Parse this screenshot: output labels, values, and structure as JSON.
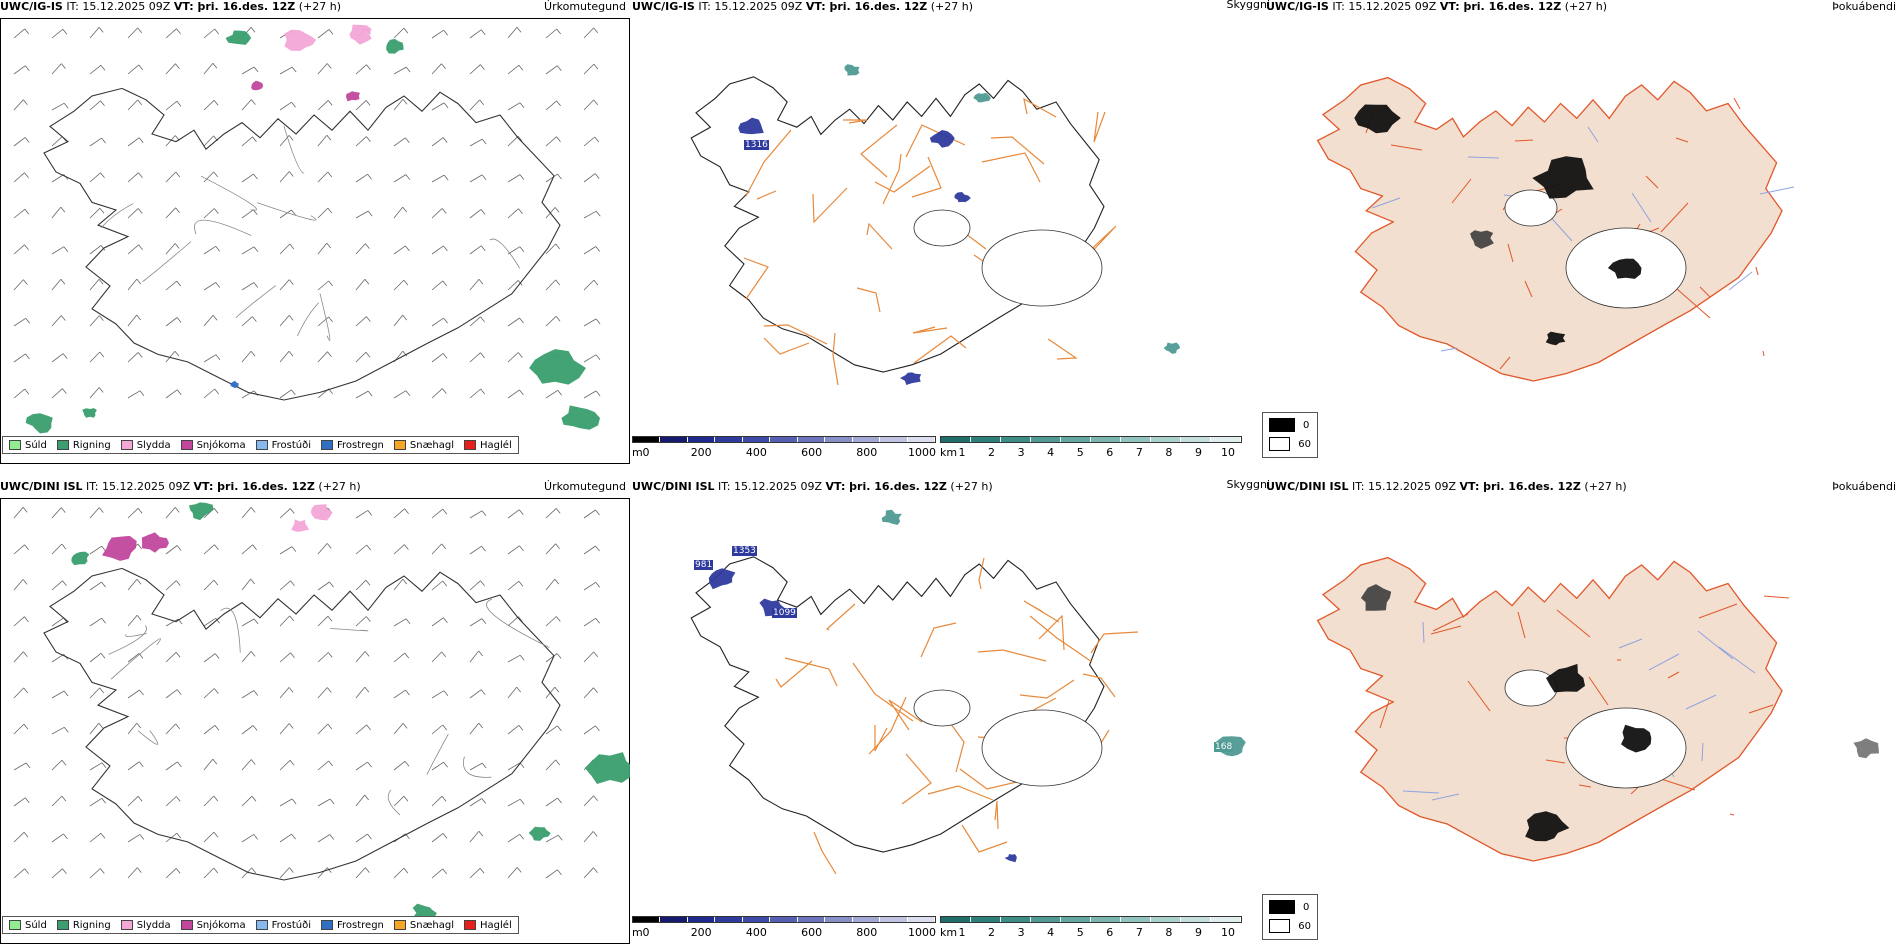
{
  "rows": [
    {
      "model": "UWC/IG-IS",
      "it_label": "IT:",
      "it_value": "15.12.2025 09Z",
      "vt_label": "VT: þri. 16.des. 12Z",
      "lead": "(+27 h)",
      "panel1_type": "Úrkomutegund",
      "panel2_type": "Skyggni",
      "panel3_type": "Þokuábendi"
    },
    {
      "model": "UWC/DINI ISL",
      "it_label": "IT:",
      "it_value": "15.12.2025 09Z",
      "vt_label": "VT: þri. 16.des. 12Z",
      "lead": "(+27 h)",
      "panel1_type": "Úrkomutegund",
      "panel2_type": "Skyggni",
      "panel3_type": "Þokuábendi"
    }
  ],
  "precip_legend": [
    {
      "label": "Súld",
      "color": "#90ee90"
    },
    {
      "label": "Rigning",
      "color": "#3a9e6e"
    },
    {
      "label": "Slydda",
      "color": "#f4a6d7"
    },
    {
      "label": "Snjókoma",
      "color": "#c0479b"
    },
    {
      "label": "Frostúði",
      "color": "#87b9f0"
    },
    {
      "label": "Frostregn",
      "color": "#2f6fc4"
    },
    {
      "label": "Snæhagl",
      "color": "#f5a623"
    },
    {
      "label": "Haglél",
      "color": "#e8201c"
    }
  ],
  "elev_bar": {
    "unit": "m",
    "ticks": [
      "0",
      "200",
      "400",
      "600",
      "800",
      "1000"
    ],
    "colors": [
      "#000000",
      "#151a6e",
      "#1f2a8f",
      "#2e3a9e",
      "#3e4aa8",
      "#5560b2",
      "#6c74bd",
      "#8890c8",
      "#a3a8d4",
      "#c0c3e1",
      "#dcdeef"
    ]
  },
  "vis_bar": {
    "unit": "km",
    "ticks": [
      "1",
      "2",
      "3",
      "4",
      "5",
      "6",
      "7",
      "8",
      "9",
      "10"
    ],
    "colors": [
      "#1e6f6a",
      "#2d7f79",
      "#3d8d87",
      "#4f9a94",
      "#64a8a2",
      "#7ab5af",
      "#92c3be",
      "#abd1cc",
      "#c5e0dc",
      "#e0efed"
    ]
  },
  "fog_legend": [
    {
      "label": "0",
      "color": "#000000"
    },
    {
      "label": "60",
      "color": "#ffffff"
    }
  ],
  "map_labels": {
    "top_values": [
      "1316"
    ],
    "bottom_values": [
      "981",
      "1353",
      "1099",
      "168"
    ]
  }
}
